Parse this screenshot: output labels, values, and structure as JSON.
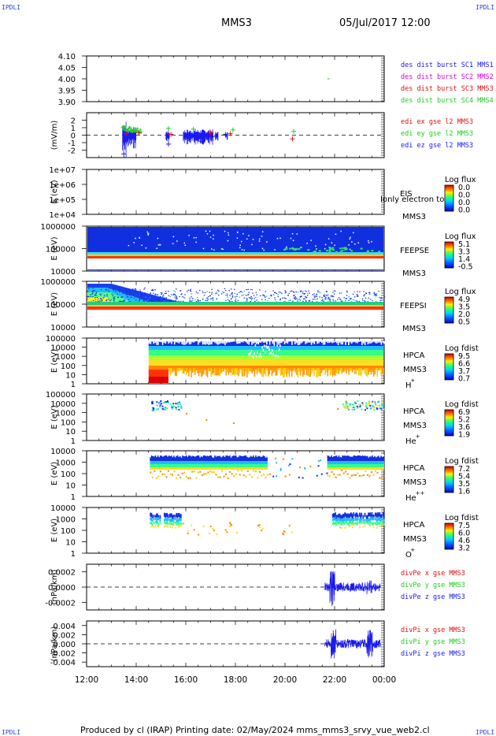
{
  "header": {
    "corner_label": "IPDLI",
    "title": "MMS3",
    "datetime": "05/Jul/2017 12:00"
  },
  "footer": {
    "text": "Produced by cl (IRAP)   Printing date: 02/May/2024   mms_mms3_srvy_vue_web2.cl"
  },
  "colors": {
    "red": "#dd1111",
    "magenta": "#dd00dd",
    "green": "#22cc22",
    "blue": "#1a1aee"
  },
  "chart_data": [
    {
      "type": "line",
      "title": "",
      "ylabel": "",
      "ylim": [
        3.9,
        4.1
      ],
      "yticks": [
        "4.10",
        "4.05",
        "4.00",
        "3.95",
        "3.90"
      ],
      "legend": [
        "des dist burst SC1 MMS1",
        "des dist burst SC2 MMS2",
        "des dist burst SC3 MMS3",
        "des dist burst SC4 MMS4"
      ],
      "series": [
        {
          "name": "des dist burst SC4 MMS4",
          "points": [
            [
              21.75,
              4.0
            ]
          ]
        }
      ]
    },
    {
      "type": "scatter",
      "ylabel": "(mV/m)",
      "ylim": [
        -3,
        3
      ],
      "yticks": [
        "2",
        "1",
        "0",
        "-1",
        "-2"
      ],
      "legend": [
        "edi ex gse l2 MMS3",
        "edi ey gse l2 MMS3",
        "edi ez gse l2 MMS3"
      ],
      "series": [
        {
          "name": "edi ex gse l2 MMS3",
          "points": [
            [
              13.6,
              0.2
            ],
            [
              14.1,
              0.3
            ],
            [
              15.4,
              0.1
            ],
            [
              17.0,
              0.3
            ],
            [
              17.8,
              0.2
            ],
            [
              20.3,
              -0.5
            ]
          ]
        },
        {
          "name": "edi ey gse l2 MMS3",
          "points": [
            [
              13.5,
              1.0
            ],
            [
              13.8,
              0.6
            ],
            [
              15.3,
              0.9
            ],
            [
              16.3,
              0.8
            ],
            [
              17.9,
              0.7
            ],
            [
              20.35,
              0.5
            ]
          ]
        },
        {
          "name": "edi ez gse l2 MMS3",
          "points": [
            [
              13.5,
              -2.5
            ],
            [
              15.3,
              -1.2
            ],
            [
              16.1,
              -0.5
            ],
            [
              16.6,
              -0.8
            ],
            [
              17.2,
              -0.2
            ],
            [
              17.6,
              0.1
            ]
          ]
        }
      ]
    },
    {
      "type": "heatmap",
      "ylabel": "E (eV)",
      "yticks": [
        "1e+07",
        "1e+06",
        "1e+05",
        "1e+04"
      ],
      "instrument": [
        "EIS",
        "MMS3"
      ],
      "note": "Ionly electron tofE",
      "colorbar_label": "Log flux",
      "colorbar_ticks": [
        "0.0",
        "0.0",
        "0.0",
        "0.0"
      ]
    },
    {
      "type": "heatmap",
      "ylabel": "E (eV)",
      "yticks": [
        "1000000",
        "100000",
        "10000"
      ],
      "instrument": [
        "FEEPSE",
        "MMS3"
      ],
      "colorbar_label": "Log flux",
      "colorbar_ticks": [
        "5.1",
        "3.3",
        "1.4",
        "-0.5"
      ]
    },
    {
      "type": "heatmap",
      "ylabel": "E (eV)",
      "yticks": [
        "1000000",
        "100000",
        "10000"
      ],
      "instrument": [
        "FEEPSI",
        "MMS3"
      ],
      "colorbar_label": "Log flux",
      "colorbar_ticks": [
        "4.9",
        "3.5",
        "2.0",
        "0.5"
      ]
    },
    {
      "type": "heatmap",
      "ylabel": "E (eV)",
      "yticks": [
        "100000",
        "10000",
        "1000",
        "100",
        "10",
        "1"
      ],
      "instrument": [
        "HPCA",
        "MMS3",
        "H",
        "+"
      ],
      "colorbar_label": "Log fdist",
      "colorbar_ticks": [
        "9.5",
        "6.6",
        "3.7",
        "0.7"
      ]
    },
    {
      "type": "heatmap",
      "ylabel": "E (eV)",
      "yticks": [
        "100000",
        "10000",
        "1000",
        "100",
        "10",
        "1"
      ],
      "instrument": [
        "HPCA",
        "MMS3",
        "He",
        "+"
      ],
      "colorbar_label": "Log fdist",
      "colorbar_ticks": [
        "6.9",
        "5.2",
        "3.6",
        "1.9"
      ]
    },
    {
      "type": "heatmap",
      "ylabel": "E (eV)",
      "yticks": [
        "10000",
        "1000",
        "100",
        "10",
        "1"
      ],
      "instrument": [
        "HPCA",
        "MMS3",
        "He",
        "++"
      ],
      "colorbar_label": "Log fdist",
      "colorbar_ticks": [
        "7.2",
        "5.4",
        "3.5",
        "1.6"
      ]
    },
    {
      "type": "heatmap",
      "ylabel": "E (eV)",
      "yticks": [
        "10000",
        "1000",
        "100",
        "10",
        "1"
      ],
      "instrument": [
        "HPCA",
        "MMS3",
        "O",
        "+"
      ],
      "colorbar_label": "Log fdist",
      "colorbar_ticks": [
        "7.5",
        "6.0",
        "4.6",
        "3.2"
      ]
    },
    {
      "type": "line",
      "ylabel": "(nPa/km)",
      "ylim": [
        -0.0003,
        0.0003
      ],
      "yticks": [
        "0.0002",
        "0.0000",
        "-0.0002"
      ],
      "legend": [
        "divPe x gse MMS3",
        "divPe y gse MMS3",
        "divPe z gse MMS3"
      ]
    },
    {
      "type": "line",
      "ylabel": "(nPa/km)",
      "ylim": [
        -0.005,
        0.005
      ],
      "yticks": [
        "0.004",
        "0.002",
        "0.000",
        "-0.002",
        "-0.004"
      ],
      "legend": [
        "divPi x gse MMS3",
        "divPi y gse MMS3",
        "divPi z gse MMS3"
      ]
    }
  ],
  "time_axis": {
    "range_hours": [
      12,
      24
    ],
    "tick_labels": [
      "12:00",
      "14:00",
      "16:00",
      "18:00",
      "20:00",
      "22:00",
      "00:00"
    ]
  }
}
